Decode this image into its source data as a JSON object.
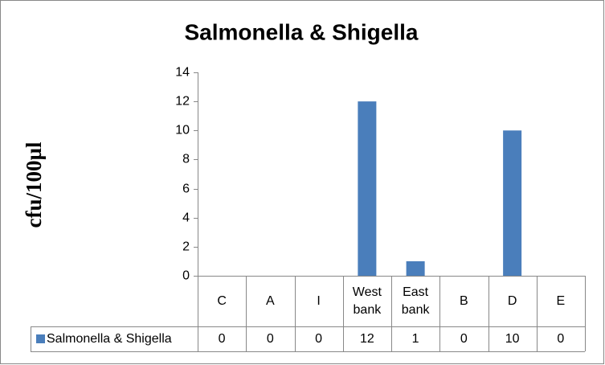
{
  "chart_data": {
    "type": "bar",
    "title": "Salmonella & Shigella",
    "y_label": "cfu/100µl",
    "categories": [
      "C",
      "A",
      "I",
      "West bank",
      "East bank",
      "B",
      "D",
      "E"
    ],
    "series": [
      {
        "name": "Salmonella & Shigella",
        "color": "#4a7ebb",
        "values": [
          0,
          0,
          0,
          12,
          1,
          0,
          10,
          0
        ]
      }
    ],
    "ylim": [
      0,
      14
    ],
    "yticks": [
      0,
      2,
      4,
      6,
      8,
      10,
      12,
      14
    ],
    "grid": false,
    "data_table": true
  }
}
